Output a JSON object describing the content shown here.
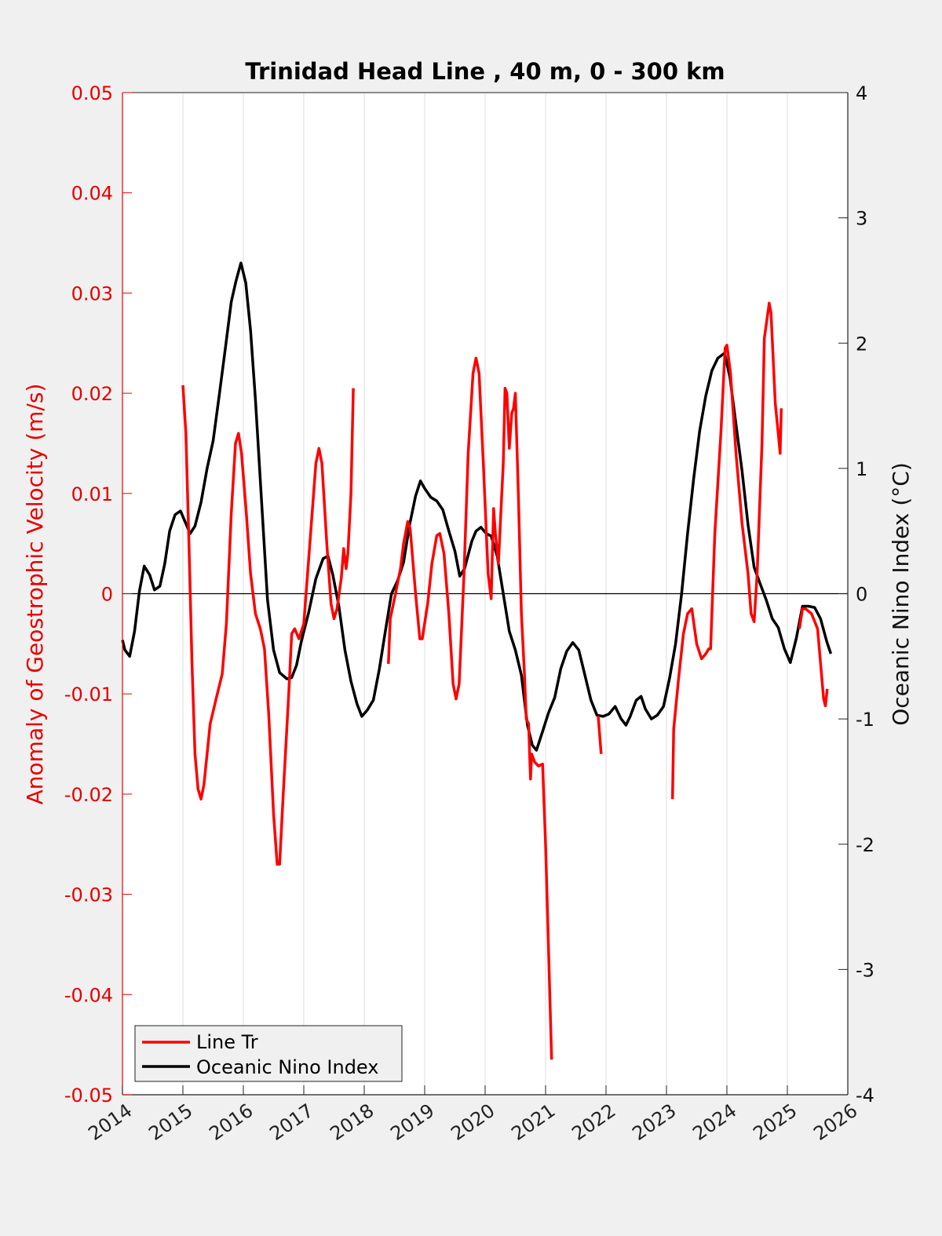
{
  "chart_data": {
    "type": "line",
    "title": "Trinidad Head Line , 40 m, 0 - 300 km",
    "xlabel": "",
    "ylabel_left": "Anomaly of Geostrophic Velocity (m/s)",
    "ylabel_right": "Oceanic Nino Index (°C)",
    "xlim": [
      2014,
      2026
    ],
    "ylim_left": [
      -0.05,
      0.05
    ],
    "ylim_right": [
      -4,
      4
    ],
    "x_ticks": [
      "2014",
      "2015",
      "2016",
      "2017",
      "2018",
      "2019",
      "2020",
      "2021",
      "2022",
      "2023",
      "2024",
      "2025",
      "2026"
    ],
    "y_ticks_left": [
      "0.05",
      "0.04",
      "0.03",
      "0.02",
      "0.01",
      "0",
      "-0.01",
      "-0.02",
      "-0.03",
      "-0.04",
      "-0.05"
    ],
    "y_ticks_right": [
      "4",
      "3",
      "2",
      "1",
      "0",
      "-1",
      "-2",
      "-3",
      "-4"
    ],
    "grid": "vertical-x",
    "zero_line": true,
    "legend": {
      "placement": "bottom-left",
      "entries": [
        "Line Tr",
        "Oceanic Nino Index"
      ]
    },
    "colors": {
      "line_tr": "#ff0000",
      "oni": "#000000",
      "left_axis": "#e60000"
    },
    "series": [
      {
        "name": "Line Tr",
        "axis": "left",
        "segments": [
          [
            [
              2015.0,
              0.0208
            ],
            [
              2015.05,
              0.016
            ],
            [
              2015.1,
              0.005
            ],
            [
              2015.15,
              -0.007
            ],
            [
              2015.2,
              -0.016
            ],
            [
              2015.25,
              -0.0195
            ],
            [
              2015.3,
              -0.0205
            ],
            [
              2015.35,
              -0.019
            ],
            [
              2015.45,
              -0.013
            ],
            [
              2015.55,
              -0.0105
            ],
            [
              2015.65,
              -0.008
            ],
            [
              2015.72,
              -0.003
            ],
            [
              2015.8,
              0.008
            ],
            [
              2015.87,
              0.015
            ],
            [
              2015.92,
              0.016
            ],
            [
              2015.97,
              0.014
            ],
            [
              2016.05,
              0.008
            ],
            [
              2016.12,
              0.002
            ],
            [
              2016.2,
              -0.002
            ],
            [
              2016.28,
              -0.0035
            ],
            [
              2016.35,
              -0.0055
            ],
            [
              2016.42,
              -0.012
            ],
            [
              2016.5,
              -0.022
            ],
            [
              2016.56,
              -0.027
            ],
            [
              2016.6,
              -0.027
            ],
            [
              2016.66,
              -0.02
            ],
            [
              2016.75,
              -0.01
            ],
            [
              2016.8,
              -0.004
            ],
            [
              2016.85,
              -0.0035
            ],
            [
              2016.92,
              -0.0045
            ],
            [
              2017.0,
              -0.003
            ],
            [
              2017.1,
              0.005
            ],
            [
              2017.2,
              0.013
            ],
            [
              2017.25,
              0.0145
            ],
            [
              2017.3,
              0.013
            ],
            [
              2017.38,
              0.005
            ],
            [
              2017.45,
              -0.001
            ],
            [
              2017.5,
              -0.0025
            ],
            [
              2017.55,
              -0.0015
            ],
            [
              2017.62,
              0.0015
            ],
            [
              2017.66,
              0.0045
            ],
            [
              2017.7,
              0.0025
            ],
            [
              2017.73,
              0.004
            ],
            [
              2017.78,
              0.01
            ],
            [
              2017.82,
              0.0205
            ]
          ],
          [
            [
              2018.4,
              -0.007
            ],
            [
              2018.43,
              -0.0025
            ],
            [
              2018.5,
              -0.0005
            ],
            [
              2018.6,
              0.0025
            ],
            [
              2018.65,
              0.005
            ],
            [
              2018.72,
              0.0072
            ],
            [
              2018.76,
              0.0065
            ],
            [
              2018.85,
              0.0
            ],
            [
              2018.92,
              -0.0045
            ],
            [
              2018.96,
              -0.0045
            ],
            [
              2019.05,
              -0.001
            ],
            [
              2019.12,
              0.003
            ],
            [
              2019.2,
              0.0058
            ],
            [
              2019.25,
              0.006
            ],
            [
              2019.32,
              0.004
            ],
            [
              2019.4,
              -0.002
            ],
            [
              2019.47,
              -0.009
            ],
            [
              2019.52,
              -0.0105
            ],
            [
              2019.57,
              -0.009
            ],
            [
              2019.65,
              0.002
            ],
            [
              2019.72,
              0.014
            ],
            [
              2019.8,
              0.022
            ],
            [
              2019.85,
              0.0235
            ],
            [
              2019.9,
              0.022
            ],
            [
              2019.97,
              0.013
            ],
            [
              2020.05,
              0.002
            ],
            [
              2020.1,
              -0.0005
            ],
            [
              2020.14,
              0.0085
            ],
            [
              2020.17,
              0.006
            ],
            [
              2020.22,
              0.003
            ],
            [
              2020.3,
              0.013
            ],
            [
              2020.33,
              0.0205
            ],
            [
              2020.36,
              0.02
            ],
            [
              2020.4,
              0.0145
            ],
            [
              2020.44,
              0.018
            ],
            [
              2020.47,
              0.0185
            ],
            [
              2020.5,
              0.02
            ],
            [
              2020.55,
              0.01
            ],
            [
              2020.6,
              -0.002
            ],
            [
              2020.65,
              -0.008
            ],
            [
              2020.68,
              -0.0125
            ],
            [
              2020.72,
              -0.013
            ],
            [
              2020.75,
              -0.0185
            ],
            [
              2020.77,
              -0.016
            ],
            [
              2020.82,
              -0.0168
            ],
            [
              2020.88,
              -0.0172
            ],
            [
              2020.95,
              -0.017
            ],
            [
              2021.0,
              -0.025
            ],
            [
              2021.1,
              -0.0465
            ]
          ],
          [
            [
              2021.87,
              -0.0122
            ],
            [
              2021.92,
              -0.016
            ]
          ],
          [
            [
              2023.1,
              -0.0205
            ],
            [
              2023.12,
              -0.0135
            ],
            [
              2023.2,
              -0.0085
            ],
            [
              2023.28,
              -0.004
            ],
            [
              2023.35,
              -0.002
            ],
            [
              2023.42,
              -0.0015
            ],
            [
              2023.5,
              -0.005
            ],
            [
              2023.58,
              -0.0065
            ],
            [
              2023.65,
              -0.006
            ],
            [
              2023.7,
              -0.0055
            ],
            [
              2023.73,
              -0.0055
            ],
            [
              2023.8,
              0.006
            ],
            [
              2023.9,
              0.016
            ],
            [
              2023.97,
              0.0245
            ],
            [
              2024.0,
              0.0248
            ],
            [
              2024.06,
              0.022
            ],
            [
              2024.15,
              0.014
            ],
            [
              2024.25,
              0.007
            ],
            [
              2024.35,
              0.002
            ],
            [
              2024.4,
              -0.002
            ],
            [
              2024.45,
              -0.0028
            ],
            [
              2024.5,
              0.002
            ],
            [
              2024.58,
              0.015
            ],
            [
              2024.62,
              0.0255
            ],
            [
              2024.7,
              0.029
            ],
            [
              2024.73,
              0.028
            ],
            [
              2024.8,
              0.019
            ],
            [
              2024.85,
              0.016
            ],
            [
              2024.88,
              0.014
            ],
            [
              2024.9,
              0.0185
            ]
          ],
          [
            [
              2025.2,
              -0.0035
            ],
            [
              2025.25,
              -0.0015
            ],
            [
              2025.3,
              -0.0015
            ],
            [
              2025.4,
              -0.002
            ],
            [
              2025.5,
              -0.0035
            ],
            [
              2025.6,
              -0.0105
            ],
            [
              2025.63,
              -0.0112
            ],
            [
              2025.66,
              -0.0095
            ]
          ]
        ]
      },
      {
        "name": "Oceanic Nino Index",
        "axis": "right",
        "points": [
          [
            2014.0,
            -0.37
          ],
          [
            2014.04,
            -0.45
          ],
          [
            2014.12,
            -0.5
          ],
          [
            2014.2,
            -0.3
          ],
          [
            2014.28,
            0.02
          ],
          [
            2014.36,
            0.22
          ],
          [
            2014.45,
            0.15
          ],
          [
            2014.53,
            0.03
          ],
          [
            2014.62,
            0.06
          ],
          [
            2014.7,
            0.24
          ],
          [
            2014.78,
            0.5
          ],
          [
            2014.87,
            0.63
          ],
          [
            2014.96,
            0.66
          ],
          [
            2015.04,
            0.57
          ],
          [
            2015.12,
            0.48
          ],
          [
            2015.2,
            0.54
          ],
          [
            2015.3,
            0.73
          ],
          [
            2015.4,
            1.0
          ],
          [
            2015.5,
            1.22
          ],
          [
            2015.6,
            1.58
          ],
          [
            2015.7,
            1.95
          ],
          [
            2015.8,
            2.33
          ],
          [
            2015.88,
            2.5
          ],
          [
            2015.96,
            2.64
          ],
          [
            2016.04,
            2.48
          ],
          [
            2016.12,
            2.1
          ],
          [
            2016.2,
            1.55
          ],
          [
            2016.3,
            0.75
          ],
          [
            2016.4,
            -0.05
          ],
          [
            2016.5,
            -0.45
          ],
          [
            2016.6,
            -0.63
          ],
          [
            2016.72,
            -0.68
          ],
          [
            2016.8,
            -0.67
          ],
          [
            2016.88,
            -0.57
          ],
          [
            2016.96,
            -0.38
          ],
          [
            2017.08,
            -0.15
          ],
          [
            2017.2,
            0.12
          ],
          [
            2017.32,
            0.28
          ],
          [
            2017.4,
            0.3
          ],
          [
            2017.48,
            0.15
          ],
          [
            2017.58,
            -0.1
          ],
          [
            2017.68,
            -0.45
          ],
          [
            2017.78,
            -0.7
          ],
          [
            2017.88,
            -0.88
          ],
          [
            2017.96,
            -0.98
          ],
          [
            2018.05,
            -0.93
          ],
          [
            2018.15,
            -0.85
          ],
          [
            2018.25,
            -0.6
          ],
          [
            2018.35,
            -0.3
          ],
          [
            2018.45,
            0.0
          ],
          [
            2018.55,
            0.1
          ],
          [
            2018.65,
            0.25
          ],
          [
            2018.75,
            0.55
          ],
          [
            2018.85,
            0.78
          ],
          [
            2018.93,
            0.9
          ],
          [
            2019.0,
            0.84
          ],
          [
            2019.1,
            0.77
          ],
          [
            2019.2,
            0.74
          ],
          [
            2019.3,
            0.67
          ],
          [
            2019.4,
            0.5
          ],
          [
            2019.5,
            0.34
          ],
          [
            2019.58,
            0.14
          ],
          [
            2019.66,
            0.2
          ],
          [
            2019.78,
            0.42
          ],
          [
            2019.85,
            0.5
          ],
          [
            2019.93,
            0.53
          ],
          [
            2020.02,
            0.48
          ],
          [
            2020.1,
            0.46
          ],
          [
            2020.2,
            0.3
          ],
          [
            2020.3,
            0.0
          ],
          [
            2020.4,
            -0.3
          ],
          [
            2020.5,
            -0.45
          ],
          [
            2020.6,
            -0.65
          ],
          [
            2020.7,
            -1.05
          ],
          [
            2020.78,
            -1.21
          ],
          [
            2020.85,
            -1.25
          ],
          [
            2020.95,
            -1.1
          ],
          [
            2021.05,
            -0.95
          ],
          [
            2021.15,
            -0.83
          ],
          [
            2021.25,
            -0.6
          ],
          [
            2021.35,
            -0.46
          ],
          [
            2021.45,
            -0.39
          ],
          [
            2021.55,
            -0.45
          ],
          [
            2021.65,
            -0.65
          ],
          [
            2021.75,
            -0.85
          ],
          [
            2021.85,
            -0.97
          ],
          [
            2021.95,
            -0.98
          ],
          [
            2022.05,
            -0.96
          ],
          [
            2022.15,
            -0.9
          ],
          [
            2022.25,
            -1.0
          ],
          [
            2022.33,
            -1.05
          ],
          [
            2022.4,
            -0.98
          ],
          [
            2022.5,
            -0.85
          ],
          [
            2022.58,
            -0.82
          ],
          [
            2022.65,
            -0.92
          ],
          [
            2022.75,
            -1.0
          ],
          [
            2022.85,
            -0.97
          ],
          [
            2022.95,
            -0.9
          ],
          [
            2023.05,
            -0.68
          ],
          [
            2023.15,
            -0.4
          ],
          [
            2023.25,
            0.0
          ],
          [
            2023.35,
            0.48
          ],
          [
            2023.45,
            0.92
          ],
          [
            2023.55,
            1.3
          ],
          [
            2023.65,
            1.58
          ],
          [
            2023.75,
            1.78
          ],
          [
            2023.85,
            1.88
          ],
          [
            2023.96,
            1.92
          ],
          [
            2024.05,
            1.73
          ],
          [
            2024.15,
            1.35
          ],
          [
            2024.25,
            0.98
          ],
          [
            2024.35,
            0.55
          ],
          [
            2024.45,
            0.21
          ],
          [
            2024.55,
            0.08
          ],
          [
            2024.65,
            -0.05
          ],
          [
            2024.75,
            -0.2
          ],
          [
            2024.85,
            -0.27
          ],
          [
            2024.95,
            -0.44
          ],
          [
            2025.05,
            -0.55
          ],
          [
            2025.15,
            -0.35
          ],
          [
            2025.25,
            -0.1
          ],
          [
            2025.35,
            -0.1
          ],
          [
            2025.45,
            -0.11
          ],
          [
            2025.55,
            -0.2
          ],
          [
            2025.65,
            -0.38
          ],
          [
            2025.72,
            -0.48
          ]
        ]
      }
    ]
  }
}
